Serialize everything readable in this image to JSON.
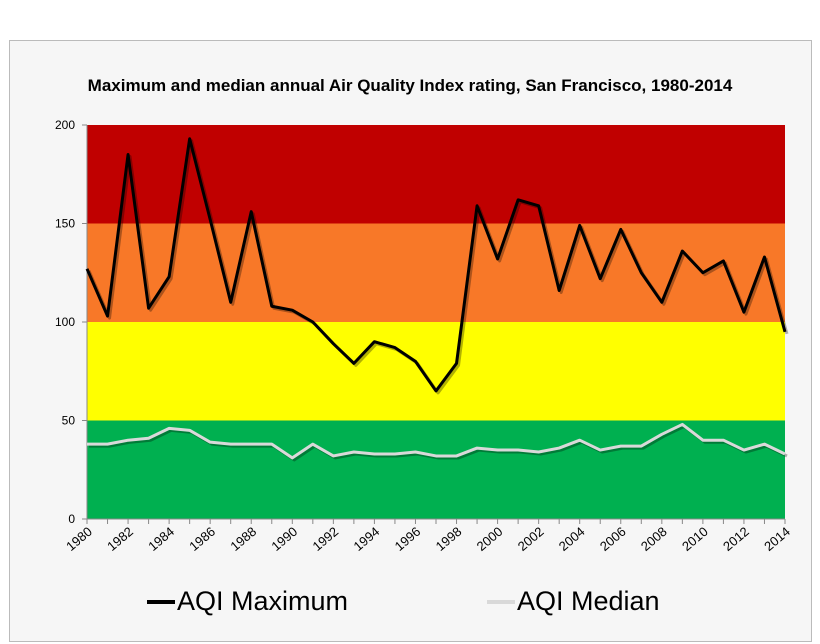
{
  "chart_data": {
    "type": "line",
    "title": "Maximum and median annual Air Quality Index rating, San Francisco, 1980-2014",
    "xlabel": "",
    "ylabel": "",
    "x": [
      1980,
      1981,
      1982,
      1983,
      1984,
      1985,
      1986,
      1987,
      1988,
      1989,
      1990,
      1991,
      1992,
      1993,
      1994,
      1995,
      1996,
      1997,
      1998,
      1999,
      2000,
      2001,
      2002,
      2003,
      2004,
      2005,
      2006,
      2007,
      2008,
      2009,
      2010,
      2011,
      2012,
      2013,
      2014
    ],
    "x_tick_labels": [
      "1980",
      "1982",
      "1984",
      "1986",
      "1988",
      "1990",
      "1992",
      "1994",
      "1996",
      "1998",
      "2000",
      "2002",
      "2004",
      "2006",
      "2008",
      "2010",
      "2012",
      "2014"
    ],
    "ylim": [
      0,
      200
    ],
    "y_ticks": [
      "0",
      "50",
      "100",
      "150",
      "200"
    ],
    "grid": false,
    "legend_position": "bottom",
    "bands": [
      {
        "from": 0,
        "to": 50,
        "color": "#00b050"
      },
      {
        "from": 50,
        "to": 100,
        "color": "#ffff00"
      },
      {
        "from": 100,
        "to": 150,
        "color": "#f87828"
      },
      {
        "from": 150,
        "to": 200,
        "color": "#c00000"
      }
    ],
    "series": [
      {
        "name": "AQI Maximum",
        "color": "#000000",
        "values": [
          127,
          103,
          185,
          107,
          123,
          193,
          152,
          110,
          156,
          108,
          106,
          100,
          89,
          79,
          90,
          87,
          80,
          65,
          79,
          159,
          132,
          162,
          159,
          116,
          149,
          122,
          147,
          125,
          110,
          136,
          125,
          131,
          105,
          133,
          95
        ]
      },
      {
        "name": "AQI Median",
        "color": "#d9d9d9",
        "values": [
          38,
          38,
          40,
          41,
          46,
          45,
          39,
          38,
          38,
          38,
          31,
          38,
          32,
          34,
          33,
          33,
          34,
          32,
          32,
          36,
          35,
          35,
          34,
          36,
          40,
          35,
          37,
          37,
          43,
          48,
          40,
          40,
          35,
          38,
          33
        ]
      }
    ]
  }
}
